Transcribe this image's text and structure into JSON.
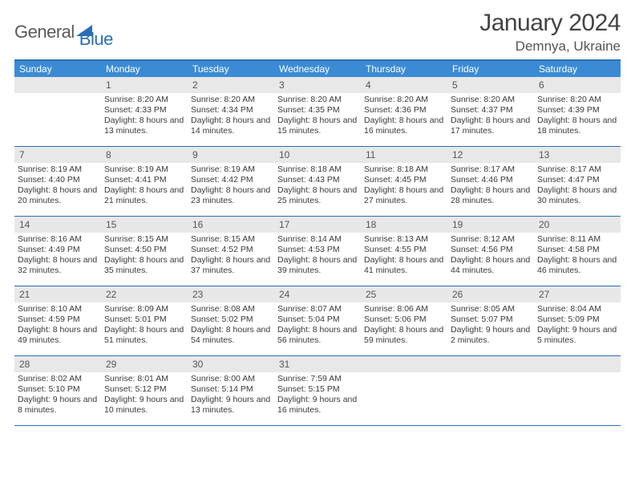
{
  "logo": {
    "part1": "General",
    "part2": "Blue",
    "triangle_color": "#2a6fb5"
  },
  "title": "January 2024",
  "location": "Demnya, Ukraine",
  "colors": {
    "header_bg": "#3b8bd4",
    "border": "#2a6fb5",
    "daynum_bg": "#e8e8e8",
    "text": "#333333"
  },
  "day_headers": [
    "Sunday",
    "Monday",
    "Tuesday",
    "Wednesday",
    "Thursday",
    "Friday",
    "Saturday"
  ],
  "weeks": [
    [
      {
        "day": "",
        "sunrise": "",
        "sunset": "",
        "daylight": ""
      },
      {
        "day": "1",
        "sunrise": "Sunrise: 8:20 AM",
        "sunset": "Sunset: 4:33 PM",
        "daylight": "Daylight: 8 hours and 13 minutes."
      },
      {
        "day": "2",
        "sunrise": "Sunrise: 8:20 AM",
        "sunset": "Sunset: 4:34 PM",
        "daylight": "Daylight: 8 hours and 14 minutes."
      },
      {
        "day": "3",
        "sunrise": "Sunrise: 8:20 AM",
        "sunset": "Sunset: 4:35 PM",
        "daylight": "Daylight: 8 hours and 15 minutes."
      },
      {
        "day": "4",
        "sunrise": "Sunrise: 8:20 AM",
        "sunset": "Sunset: 4:36 PM",
        "daylight": "Daylight: 8 hours and 16 minutes."
      },
      {
        "day": "5",
        "sunrise": "Sunrise: 8:20 AM",
        "sunset": "Sunset: 4:37 PM",
        "daylight": "Daylight: 8 hours and 17 minutes."
      },
      {
        "day": "6",
        "sunrise": "Sunrise: 8:20 AM",
        "sunset": "Sunset: 4:39 PM",
        "daylight": "Daylight: 8 hours and 18 minutes."
      }
    ],
    [
      {
        "day": "7",
        "sunrise": "Sunrise: 8:19 AM",
        "sunset": "Sunset: 4:40 PM",
        "daylight": "Daylight: 8 hours and 20 minutes."
      },
      {
        "day": "8",
        "sunrise": "Sunrise: 8:19 AM",
        "sunset": "Sunset: 4:41 PM",
        "daylight": "Daylight: 8 hours and 21 minutes."
      },
      {
        "day": "9",
        "sunrise": "Sunrise: 8:19 AM",
        "sunset": "Sunset: 4:42 PM",
        "daylight": "Daylight: 8 hours and 23 minutes."
      },
      {
        "day": "10",
        "sunrise": "Sunrise: 8:18 AM",
        "sunset": "Sunset: 4:43 PM",
        "daylight": "Daylight: 8 hours and 25 minutes."
      },
      {
        "day": "11",
        "sunrise": "Sunrise: 8:18 AM",
        "sunset": "Sunset: 4:45 PM",
        "daylight": "Daylight: 8 hours and 27 minutes."
      },
      {
        "day": "12",
        "sunrise": "Sunrise: 8:17 AM",
        "sunset": "Sunset: 4:46 PM",
        "daylight": "Daylight: 8 hours and 28 minutes."
      },
      {
        "day": "13",
        "sunrise": "Sunrise: 8:17 AM",
        "sunset": "Sunset: 4:47 PM",
        "daylight": "Daylight: 8 hours and 30 minutes."
      }
    ],
    [
      {
        "day": "14",
        "sunrise": "Sunrise: 8:16 AM",
        "sunset": "Sunset: 4:49 PM",
        "daylight": "Daylight: 8 hours and 32 minutes."
      },
      {
        "day": "15",
        "sunrise": "Sunrise: 8:15 AM",
        "sunset": "Sunset: 4:50 PM",
        "daylight": "Daylight: 8 hours and 35 minutes."
      },
      {
        "day": "16",
        "sunrise": "Sunrise: 8:15 AM",
        "sunset": "Sunset: 4:52 PM",
        "daylight": "Daylight: 8 hours and 37 minutes."
      },
      {
        "day": "17",
        "sunrise": "Sunrise: 8:14 AM",
        "sunset": "Sunset: 4:53 PM",
        "daylight": "Daylight: 8 hours and 39 minutes."
      },
      {
        "day": "18",
        "sunrise": "Sunrise: 8:13 AM",
        "sunset": "Sunset: 4:55 PM",
        "daylight": "Daylight: 8 hours and 41 minutes."
      },
      {
        "day": "19",
        "sunrise": "Sunrise: 8:12 AM",
        "sunset": "Sunset: 4:56 PM",
        "daylight": "Daylight: 8 hours and 44 minutes."
      },
      {
        "day": "20",
        "sunrise": "Sunrise: 8:11 AM",
        "sunset": "Sunset: 4:58 PM",
        "daylight": "Daylight: 8 hours and 46 minutes."
      }
    ],
    [
      {
        "day": "21",
        "sunrise": "Sunrise: 8:10 AM",
        "sunset": "Sunset: 4:59 PM",
        "daylight": "Daylight: 8 hours and 49 minutes."
      },
      {
        "day": "22",
        "sunrise": "Sunrise: 8:09 AM",
        "sunset": "Sunset: 5:01 PM",
        "daylight": "Daylight: 8 hours and 51 minutes."
      },
      {
        "day": "23",
        "sunrise": "Sunrise: 8:08 AM",
        "sunset": "Sunset: 5:02 PM",
        "daylight": "Daylight: 8 hours and 54 minutes."
      },
      {
        "day": "24",
        "sunrise": "Sunrise: 8:07 AM",
        "sunset": "Sunset: 5:04 PM",
        "daylight": "Daylight: 8 hours and 56 minutes."
      },
      {
        "day": "25",
        "sunrise": "Sunrise: 8:06 AM",
        "sunset": "Sunset: 5:06 PM",
        "daylight": "Daylight: 8 hours and 59 minutes."
      },
      {
        "day": "26",
        "sunrise": "Sunrise: 8:05 AM",
        "sunset": "Sunset: 5:07 PM",
        "daylight": "Daylight: 9 hours and 2 minutes."
      },
      {
        "day": "27",
        "sunrise": "Sunrise: 8:04 AM",
        "sunset": "Sunset: 5:09 PM",
        "daylight": "Daylight: 9 hours and 5 minutes."
      }
    ],
    [
      {
        "day": "28",
        "sunrise": "Sunrise: 8:02 AM",
        "sunset": "Sunset: 5:10 PM",
        "daylight": "Daylight: 9 hours and 8 minutes."
      },
      {
        "day": "29",
        "sunrise": "Sunrise: 8:01 AM",
        "sunset": "Sunset: 5:12 PM",
        "daylight": "Daylight: 9 hours and 10 minutes."
      },
      {
        "day": "30",
        "sunrise": "Sunrise: 8:00 AM",
        "sunset": "Sunset: 5:14 PM",
        "daylight": "Daylight: 9 hours and 13 minutes."
      },
      {
        "day": "31",
        "sunrise": "Sunrise: 7:59 AM",
        "sunset": "Sunset: 5:15 PM",
        "daylight": "Daylight: 9 hours and 16 minutes."
      },
      {
        "day": "",
        "sunrise": "",
        "sunset": "",
        "daylight": ""
      },
      {
        "day": "",
        "sunrise": "",
        "sunset": "",
        "daylight": ""
      },
      {
        "day": "",
        "sunrise": "",
        "sunset": "",
        "daylight": ""
      }
    ]
  ]
}
